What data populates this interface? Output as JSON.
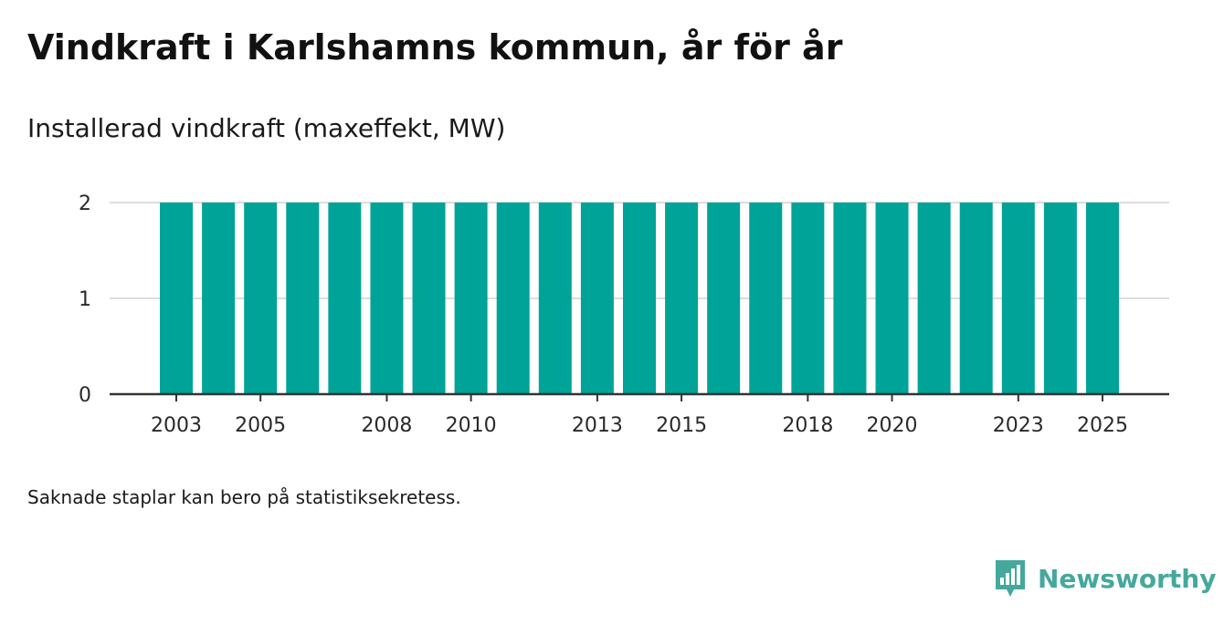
{
  "title": "Vindkraft i Karlshamns kommun, år för år",
  "subtitle": "Installerad vindkraft (maxeffekt, MW)",
  "note": "Saknade staplar kan bero på statistiksekretess.",
  "brand": {
    "name": "Newsworthy",
    "icon": "newsworthy-logo-icon"
  },
  "colors": {
    "bar": "#00a398",
    "grid": "#dddddd",
    "axis": "#333333",
    "brand": "#45a89c"
  },
  "chart_data": {
    "type": "bar",
    "title": "Vindkraft i Karlshamns kommun, år för år",
    "subtitle": "Installerad vindkraft (maxeffekt, MW)",
    "xlabel": "",
    "ylabel": "",
    "categories": [
      "2003",
      "2004",
      "2005",
      "2006",
      "2007",
      "2008",
      "2009",
      "2010",
      "2011",
      "2012",
      "2013",
      "2014",
      "2015",
      "2016",
      "2017",
      "2018",
      "2019",
      "2020",
      "2021",
      "2022",
      "2023",
      "2024",
      "2025"
    ],
    "values": [
      2,
      2,
      2,
      2,
      2,
      2,
      2,
      2,
      2,
      2,
      2,
      2,
      2,
      2,
      2,
      2,
      2,
      2,
      2,
      2,
      2,
      2,
      2
    ],
    "ylim": [
      0,
      2
    ],
    "yticks": [
      "0",
      "1",
      "2"
    ],
    "xtick_labels": [
      "2003",
      "2005",
      "2008",
      "2010",
      "2013",
      "2015",
      "2018",
      "2020",
      "2023",
      "2025"
    ],
    "grid": true,
    "legend": "none"
  }
}
